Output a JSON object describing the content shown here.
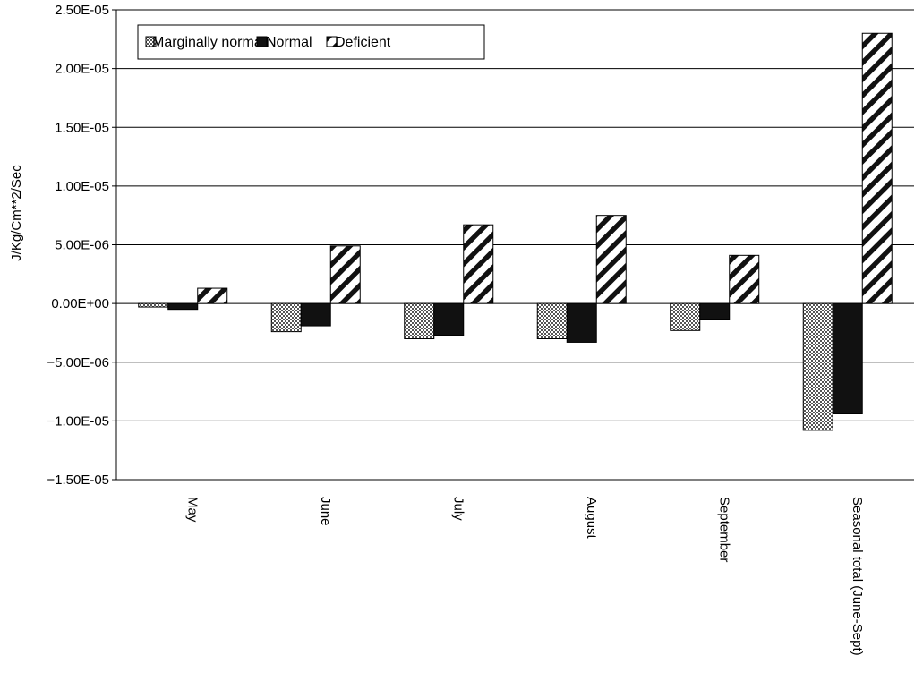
{
  "chart_data": {
    "type": "bar",
    "title": "",
    "xlabel": "",
    "ylabel": "J/Kg/Cm**2/Sec",
    "ylim": [
      -1.5e-05,
      2.5e-05
    ],
    "ytick_values": [
      2.5e-05,
      2e-05,
      1.5e-05,
      1e-05,
      5e-06,
      0,
      -5e-06,
      -1e-05,
      -1.5e-05
    ],
    "ytick_labels": [
      "2.50E-05",
      "2.00E-05",
      "1.50E-05",
      "1.00E-05",
      "5.00E-06",
      "0.00E+00",
      "−5.00E-06",
      "−1.00E-05",
      "−1.50E-05"
    ],
    "grid": true,
    "legend_position": "top-left",
    "categories": [
      "May",
      "June",
      "July",
      "August",
      "September",
      "Seasonal total (June-Sept)"
    ],
    "series": [
      {
        "name": "Marginally normal",
        "pattern": "checker",
        "color": "#8a8a8a",
        "values": [
          -3e-07,
          -2.4e-06,
          -3e-06,
          -3e-06,
          -2.3e-06,
          -1.08e-05
        ]
      },
      {
        "name": "Normal",
        "pattern": "solid",
        "color": "#111111",
        "values": [
          -5e-07,
          -1.9e-06,
          -2.7e-06,
          -3.3e-06,
          -1.4e-06,
          -9.4e-06
        ]
      },
      {
        "name": "Deficient",
        "pattern": "diagonal",
        "color": "#111111",
        "values": [
          1.3e-06,
          4.9e-06,
          6.7e-06,
          7.5e-06,
          4.1e-06,
          2.3e-05
        ]
      }
    ]
  }
}
